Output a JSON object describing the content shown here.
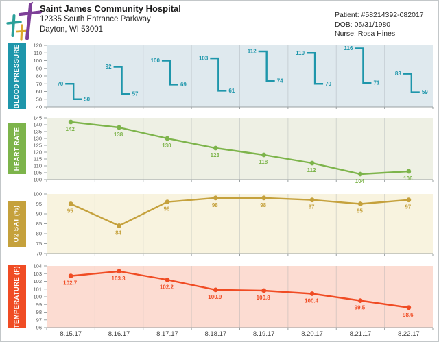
{
  "header": {
    "hospital_name": "Saint James Community Hospital",
    "address_line1": "12335 South Entrance Parkway",
    "address_line2": "Dayton, WI 53001",
    "patient_id": "Patient: #58214392-082017",
    "dob": "DOB: 05/31/1980",
    "nurse": "Nurse: Rosa Hines"
  },
  "dates": [
    "8.15.17",
    "8.16.17",
    "8.17.17",
    "8.18.17",
    "8.19.17",
    "8.20.17",
    "8.21.17",
    "8.22.17"
  ],
  "chart_data": [
    {
      "type": "hilo-bar",
      "title": "BLOOD PRESSURE",
      "categories": [
        "8.15.17",
        "8.16.17",
        "8.17.17",
        "8.18.17",
        "8.19.17",
        "8.20.17",
        "8.21.17",
        "8.22.17"
      ],
      "series": [
        {
          "name": "systolic",
          "values": [
            70,
            92,
            100,
            103,
            112,
            110,
            116,
            83
          ]
        },
        {
          "name": "diastolic",
          "values": [
            50,
            57,
            69,
            61,
            74,
            70,
            71,
            59
          ]
        }
      ],
      "ylim": [
        40,
        120
      ],
      "ystep": 10,
      "color": "#1e96ab",
      "bg": "#dfe9ee",
      "grid": true,
      "legend": "none"
    },
    {
      "type": "line",
      "title": "HEART RATE",
      "categories": [
        "8.15.17",
        "8.16.17",
        "8.17.17",
        "8.18.17",
        "8.19.17",
        "8.20.17",
        "8.21.17",
        "8.22.17"
      ],
      "values": [
        142,
        138,
        130,
        123,
        118,
        112,
        104,
        106
      ],
      "ylim": [
        100,
        145
      ],
      "ystep": 5,
      "color": "#7db44b",
      "bg": "#eef0e4",
      "grid": true,
      "legend": "none"
    },
    {
      "type": "line",
      "title": "O2 SAT (%)",
      "categories": [
        "8.15.17",
        "8.16.17",
        "8.17.17",
        "8.18.17",
        "8.19.17",
        "8.20.17",
        "8.21.17",
        "8.22.17"
      ],
      "values": [
        95,
        84,
        96,
        98,
        98,
        97,
        95,
        97
      ],
      "ylim": [
        70,
        100
      ],
      "ystep": 5,
      "color": "#c5a13c",
      "bg": "#f8f3df",
      "grid": true,
      "legend": "none"
    },
    {
      "type": "line",
      "title": "TEMPERATURE (F)",
      "categories": [
        "8.15.17",
        "8.16.17",
        "8.17.17",
        "8.18.17",
        "8.19.17",
        "8.20.17",
        "8.21.17",
        "8.22.17"
      ],
      "values": [
        102.7,
        103.3,
        102.2,
        100.9,
        100.8,
        100.4,
        99.5,
        98.6
      ],
      "ylim": [
        96,
        104
      ],
      "ystep": 1,
      "color": "#f04c24",
      "bg": "#fcdcd2",
      "grid": true,
      "legend": "none"
    }
  ]
}
